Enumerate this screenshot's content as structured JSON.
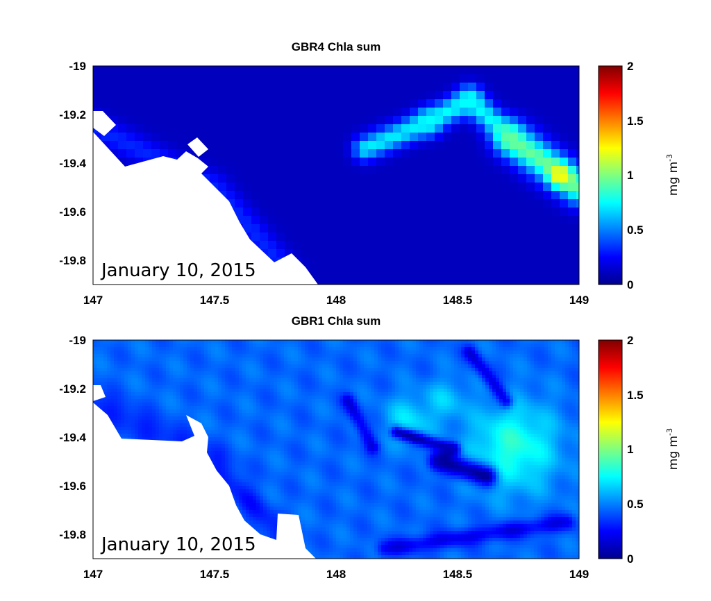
{
  "figure": {
    "date_label": "January 10, 2015",
    "colormap": "jet",
    "land_color": "#ffffff"
  },
  "chart_data": [
    {
      "type": "heatmap",
      "title": "GBR4 Chla sum",
      "xlabel": "",
      "ylabel": "",
      "xlim": [
        147,
        149
      ],
      "ylim": [
        -19.9,
        -19
      ],
      "x_ticks": [
        "147",
        "147.5",
        "148",
        "148.5",
        "149"
      ],
      "y_ticks": [
        "-19",
        "-19.2",
        "-19.4",
        "-19.6",
        "-19.8"
      ],
      "colorbar": {
        "range": [
          0,
          2
        ],
        "ticks": [
          "0",
          "0.5",
          "1",
          "1.5",
          "2"
        ],
        "label": "mg m",
        "label_superscript": "-3"
      },
      "annotation": "January 10, 2015",
      "resolution": "coarse",
      "background_value": 0.12,
      "coast_value": 0.32,
      "features": [
        {
          "kind": "ridge",
          "x0": 148.12,
          "y0": -19.34,
          "x1": 148.38,
          "y1": -19.23,
          "width": 0.035,
          "value": 0.72
        },
        {
          "kind": "ridge",
          "x0": 148.38,
          "y0": -19.23,
          "x1": 148.55,
          "y1": -19.14,
          "width": 0.035,
          "value": 0.75
        },
        {
          "kind": "ridge",
          "x0": 148.55,
          "y0": -19.14,
          "x1": 148.72,
          "y1": -19.3,
          "width": 0.035,
          "value": 0.75
        },
        {
          "kind": "ridge",
          "x0": 148.72,
          "y0": -19.3,
          "x1": 149.0,
          "y1": -19.5,
          "width": 0.05,
          "value": 0.95
        },
        {
          "kind": "blob",
          "x": 148.92,
          "y": -19.45,
          "radius": 0.03,
          "value": 1.3
        }
      ]
    },
    {
      "type": "heatmap",
      "title": "GBR1 Chla sum",
      "xlabel": "",
      "ylabel": "",
      "xlim": [
        147,
        149
      ],
      "ylim": [
        -19.9,
        -19
      ],
      "x_ticks": [
        "147",
        "147.5",
        "148",
        "148.5",
        "149"
      ],
      "y_ticks": [
        "-19",
        "-19.2",
        "-19.4",
        "-19.6",
        "-19.8"
      ],
      "colorbar": {
        "range": [
          0,
          2
        ],
        "ticks": [
          "0",
          "0.5",
          "1",
          "1.5",
          "2"
        ],
        "label": "mg m",
        "label_superscript": "-3"
      },
      "annotation": "January 10, 2015",
      "resolution": "fine",
      "background_value": 0.45,
      "coast_value": 0.3,
      "features": [
        {
          "kind": "blob",
          "x": 148.73,
          "y": -19.44,
          "radius": 0.13,
          "value": 0.82
        },
        {
          "kind": "blob",
          "x": 148.3,
          "y": -19.33,
          "radius": 0.07,
          "value": 0.7
        },
        {
          "kind": "blob",
          "x": 148.45,
          "y": -19.25,
          "radius": 0.06,
          "value": 0.65
        },
        {
          "kind": "ridge",
          "x0": 148.25,
          "y0": -19.38,
          "x1": 148.48,
          "y1": -19.45,
          "width": 0.018,
          "value": 0.12
        },
        {
          "kind": "ridge",
          "x0": 148.48,
          "y0": -19.45,
          "x1": 148.42,
          "y1": -19.5,
          "width": 0.018,
          "value": 0.14
        },
        {
          "kind": "ridge",
          "x0": 148.42,
          "y0": -19.5,
          "x1": 148.62,
          "y1": -19.56,
          "width": 0.03,
          "value": 0.1
        },
        {
          "kind": "ridge",
          "x0": 148.05,
          "y0": -19.25,
          "x1": 148.15,
          "y1": -19.44,
          "width": 0.02,
          "value": 0.2
        },
        {
          "kind": "ridge",
          "x0": 148.55,
          "y0": -19.05,
          "x1": 148.7,
          "y1": -19.25,
          "width": 0.02,
          "value": 0.2
        },
        {
          "kind": "ridge",
          "x0": 148.2,
          "y0": -19.86,
          "x1": 148.95,
          "y1": -19.75,
          "width": 0.025,
          "value": 0.22
        }
      ]
    }
  ]
}
